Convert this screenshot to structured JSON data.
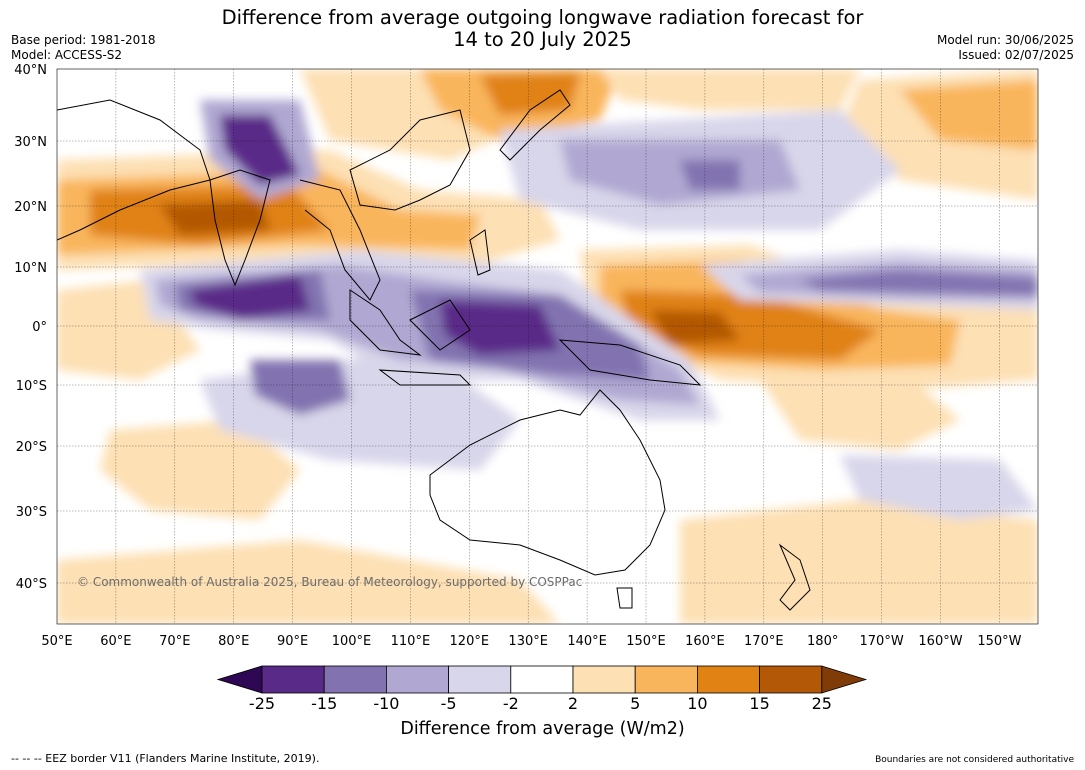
{
  "header": {
    "title_line1": "Difference from average outgoing longwave radiation forecast for",
    "title_line2": "14 to 20 July 2025",
    "base_period": "Base period: 1981-2018",
    "model": "Model: ACCESS-S2",
    "model_run": "Model run: 30/06/2025",
    "issued": "Issued: 02/07/2025"
  },
  "map": {
    "lat_labels": [
      "40°N",
      "30°N",
      "20°N",
      "10°N",
      "0°",
      "10°S",
      "20°S",
      "30°S",
      "40°S"
    ],
    "lon_labels": [
      "50°E",
      "60°E",
      "70°E",
      "80°E",
      "90°E",
      "100°E",
      "110°E",
      "120°E",
      "130°E",
      "140°E",
      "150°E",
      "160°E",
      "170°E",
      "180°",
      "170°W",
      "160°W",
      "150°W"
    ],
    "copyright": "© Commonwealth of Australia 2025, Bureau of Meteorology, supported by COSPPac"
  },
  "colorbar": {
    "labels": [
      "-25",
      "-15",
      "-10",
      "-5",
      "-2",
      "2",
      "5",
      "10",
      "15",
      "25"
    ],
    "colors": [
      "#2e0854",
      "#5a2a88",
      "#8273b0",
      "#b0a8d2",
      "#d8d6ea",
      "#ffffff",
      "#fde0b4",
      "#f9b55c",
      "#e08214",
      "#b35806",
      "#7f3b08"
    ],
    "title": "Difference from average (W/m2)"
  },
  "footer": {
    "eez_note": "--  --  -- EEZ border V11 (Flanders Marine Institute, 2019).",
    "disclaimer": "Boundaries are not considered authoritative"
  }
}
